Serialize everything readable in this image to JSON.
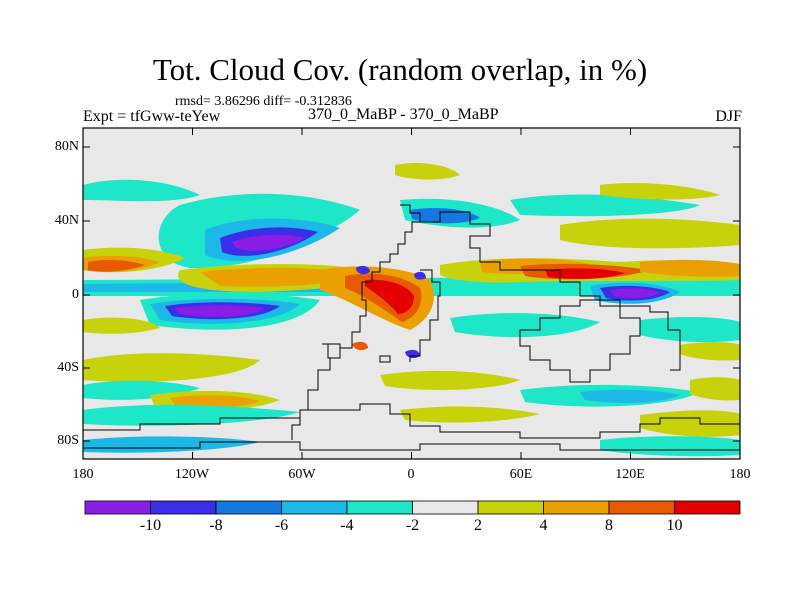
{
  "title": "Tot. Cloud Cov. (random overlap, in %)",
  "stats_text": "rmsd= 3.86296 diff= -0.312836",
  "expt_text": "Expt = tfGww-teYew",
  "subtitle": "370_0_MaBP - 370_0_MaBP",
  "season": "DJF",
  "y_ticks": [
    "80N",
    "40N",
    "0",
    "40S",
    "80S"
  ],
  "x_ticks": [
    "180",
    "120W",
    "60W",
    "0",
    "60E",
    "120E",
    "180"
  ],
  "colorbar": {
    "labels": [
      "-10",
      "-8",
      "-6",
      "-4",
      "-2",
      "2",
      "4",
      "8",
      "10"
    ],
    "colors": [
      "#8a1ee6",
      "#3b2ee8",
      "#1478e0",
      "#1cb8e8",
      "#1ee6c8",
      "#e8e8e8",
      "#c8d20a",
      "#eaa000",
      "#e85a00",
      "#e40000"
    ]
  },
  "chart_data": {
    "type": "heatmap",
    "title": "Tot. Cloud Cov. (random overlap, in %)",
    "x_range": [
      -180,
      180
    ],
    "y_range": [
      -90,
      90
    ],
    "levels": [
      -10,
      -8,
      -6,
      -4,
      -2,
      2,
      4,
      8,
      10
    ],
    "features": [
      {
        "lon": -92,
        "lat": 27,
        "value": -11
      },
      {
        "lon": -95,
        "lat": -9,
        "value": -11
      },
      {
        "lon": 120,
        "lat": 0,
        "value": -9
      },
      {
        "lon": 95,
        "lat": 10,
        "value": 10
      },
      {
        "lon": -17,
        "lat": 0,
        "value": 11
      },
      {
        "lon": -150,
        "lat": 13,
        "value": 7
      }
    ]
  }
}
